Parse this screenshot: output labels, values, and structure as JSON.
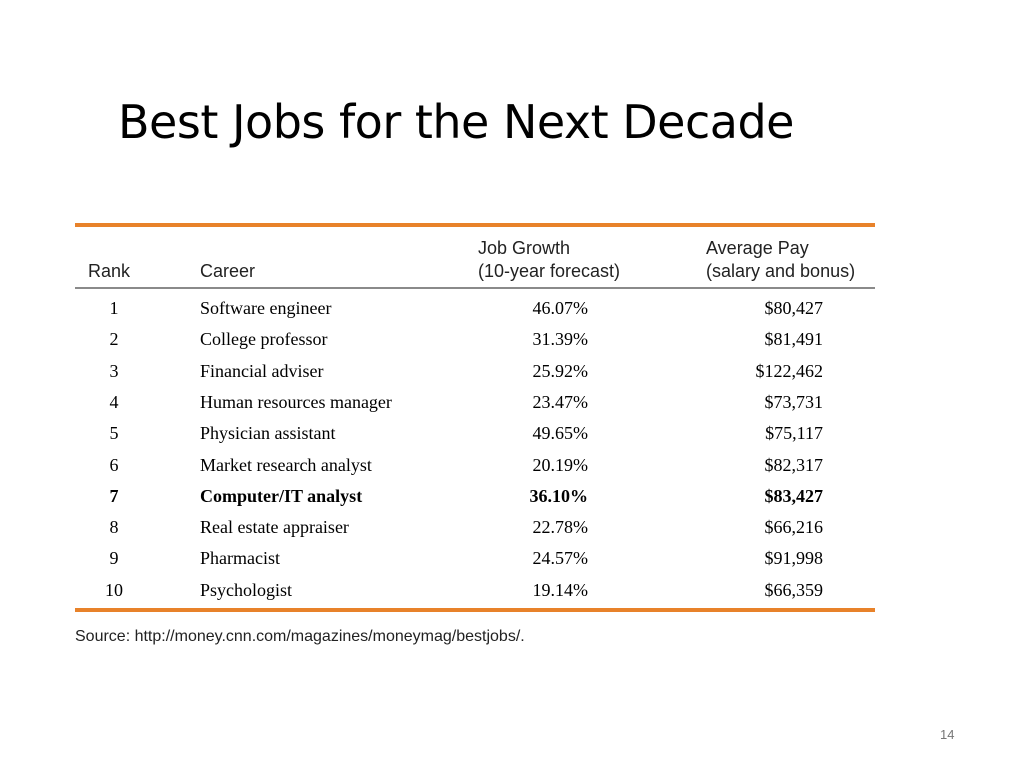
{
  "title": "Best Jobs for the Next Decade",
  "table": {
    "headers": [
      [
        "Rank"
      ],
      [
        "Career"
      ],
      [
        "Job Growth",
        "(10-year forecast)"
      ],
      [
        "Average Pay",
        "(salary and bonus)"
      ]
    ],
    "rows": [
      [
        "1",
        "Software engineer",
        "46.07%",
        "$80,427"
      ],
      [
        "2",
        "College professor",
        "31.39%",
        "$81,491"
      ],
      [
        "3",
        "Financial adviser",
        "25.92%",
        "$122,462"
      ],
      [
        "4",
        "Human resources manager",
        "23.47%",
        "$73,731"
      ],
      [
        "5",
        "Physician assistant",
        "49.65%",
        "$75,117"
      ],
      [
        "6",
        "Market research analyst",
        "20.19%",
        "$82,317"
      ],
      [
        "7",
        "Computer/IT analyst",
        "36.10%",
        "$83,427"
      ],
      [
        "8",
        "Real estate appraiser",
        "22.78%",
        "$66,216"
      ],
      [
        "9",
        "Pharmacist",
        "24.57%",
        "$91,998"
      ],
      [
        "10",
        "Psychologist",
        "19.14%",
        "$66,359"
      ]
    ]
  },
  "source": "Source: http://money.cnn.com/magazines/moneymag/bestjobs/.",
  "page_number": "14"
}
